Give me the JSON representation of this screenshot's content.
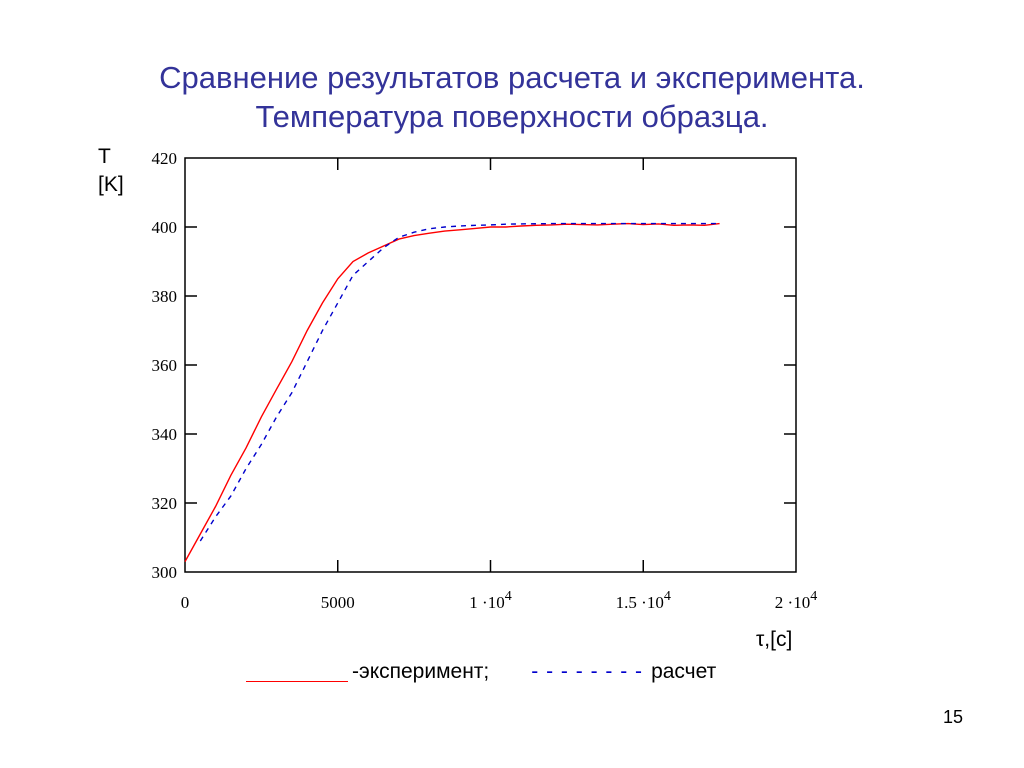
{
  "title_line1": "Сравнение результатов расчета и эксперимента.",
  "title_line2": "Температура поверхности образца.",
  "ylabel_line1": "T",
  "ylabel_line2": "[K]",
  "xlabel": "τ,[c]",
  "legend": {
    "experiment": "-эксперимент;",
    "calc_dash": "- - - - - - - -",
    "calc": "расчет"
  },
  "page_number": "15",
  "chart_data": {
    "type": "line",
    "xlim": [
      0,
      20000
    ],
    "ylim": [
      300,
      420
    ],
    "x_ticks": [
      {
        "value": 0,
        "mantissa": "0",
        "exponent": ""
      },
      {
        "value": 5000,
        "mantissa": "5000",
        "exponent": ""
      },
      {
        "value": 10000,
        "mantissa": "1 ·10",
        "exponent": "4"
      },
      {
        "value": 15000,
        "mantissa": "1.5 ·10",
        "exponent": "4"
      },
      {
        "value": 20000,
        "mantissa": "2 ·10",
        "exponent": "4"
      }
    ],
    "y_ticks": [
      300,
      320,
      340,
      360,
      380,
      400,
      420
    ],
    "series": [
      {
        "color": "#ff0000",
        "style": "solid",
        "x": [
          0,
          500,
          1000,
          1500,
          2000,
          2500,
          3000,
          3500,
          4000,
          4500,
          5000,
          5500,
          6000,
          6500,
          7000,
          7500,
          8000,
          8500,
          9000,
          9500,
          10000,
          10500,
          11000,
          11500,
          12000,
          12500,
          13000,
          13500,
          14000,
          14500,
          15000,
          15500,
          16000,
          16500,
          17000,
          17500
        ],
        "y": [
          303,
          311,
          319,
          328,
          336,
          345,
          353,
          361,
          370,
          378,
          385,
          390,
          392.5,
          394.5,
          396.5,
          397.5,
          398.2,
          398.8,
          399.2,
          399.6,
          400,
          400,
          400.3,
          400.5,
          400.6,
          400.8,
          400.7,
          400.6,
          400.8,
          401,
          400.7,
          400.9,
          400.5,
          400.6,
          400.5,
          401
        ]
      },
      {
        "color": "#0000cc",
        "style": "dashed",
        "x": [
          500,
          1000,
          1500,
          2000,
          2500,
          3000,
          3500,
          4000,
          4500,
          5000,
          5500,
          6000,
          6500,
          7000,
          7500,
          8000,
          8500,
          9000,
          9500,
          10000,
          10500,
          11000,
          12000,
          13000,
          14000,
          15000,
          16000,
          17000,
          17500
        ],
        "y": [
          309,
          316,
          322,
          330,
          337,
          345,
          352,
          361,
          370,
          378,
          386,
          390,
          394,
          397,
          398.5,
          399.5,
          400,
          400.3,
          400.5,
          400.6,
          400.8,
          400.9,
          401,
          401,
          401,
          401,
          401,
          401,
          401
        ]
      }
    ]
  }
}
